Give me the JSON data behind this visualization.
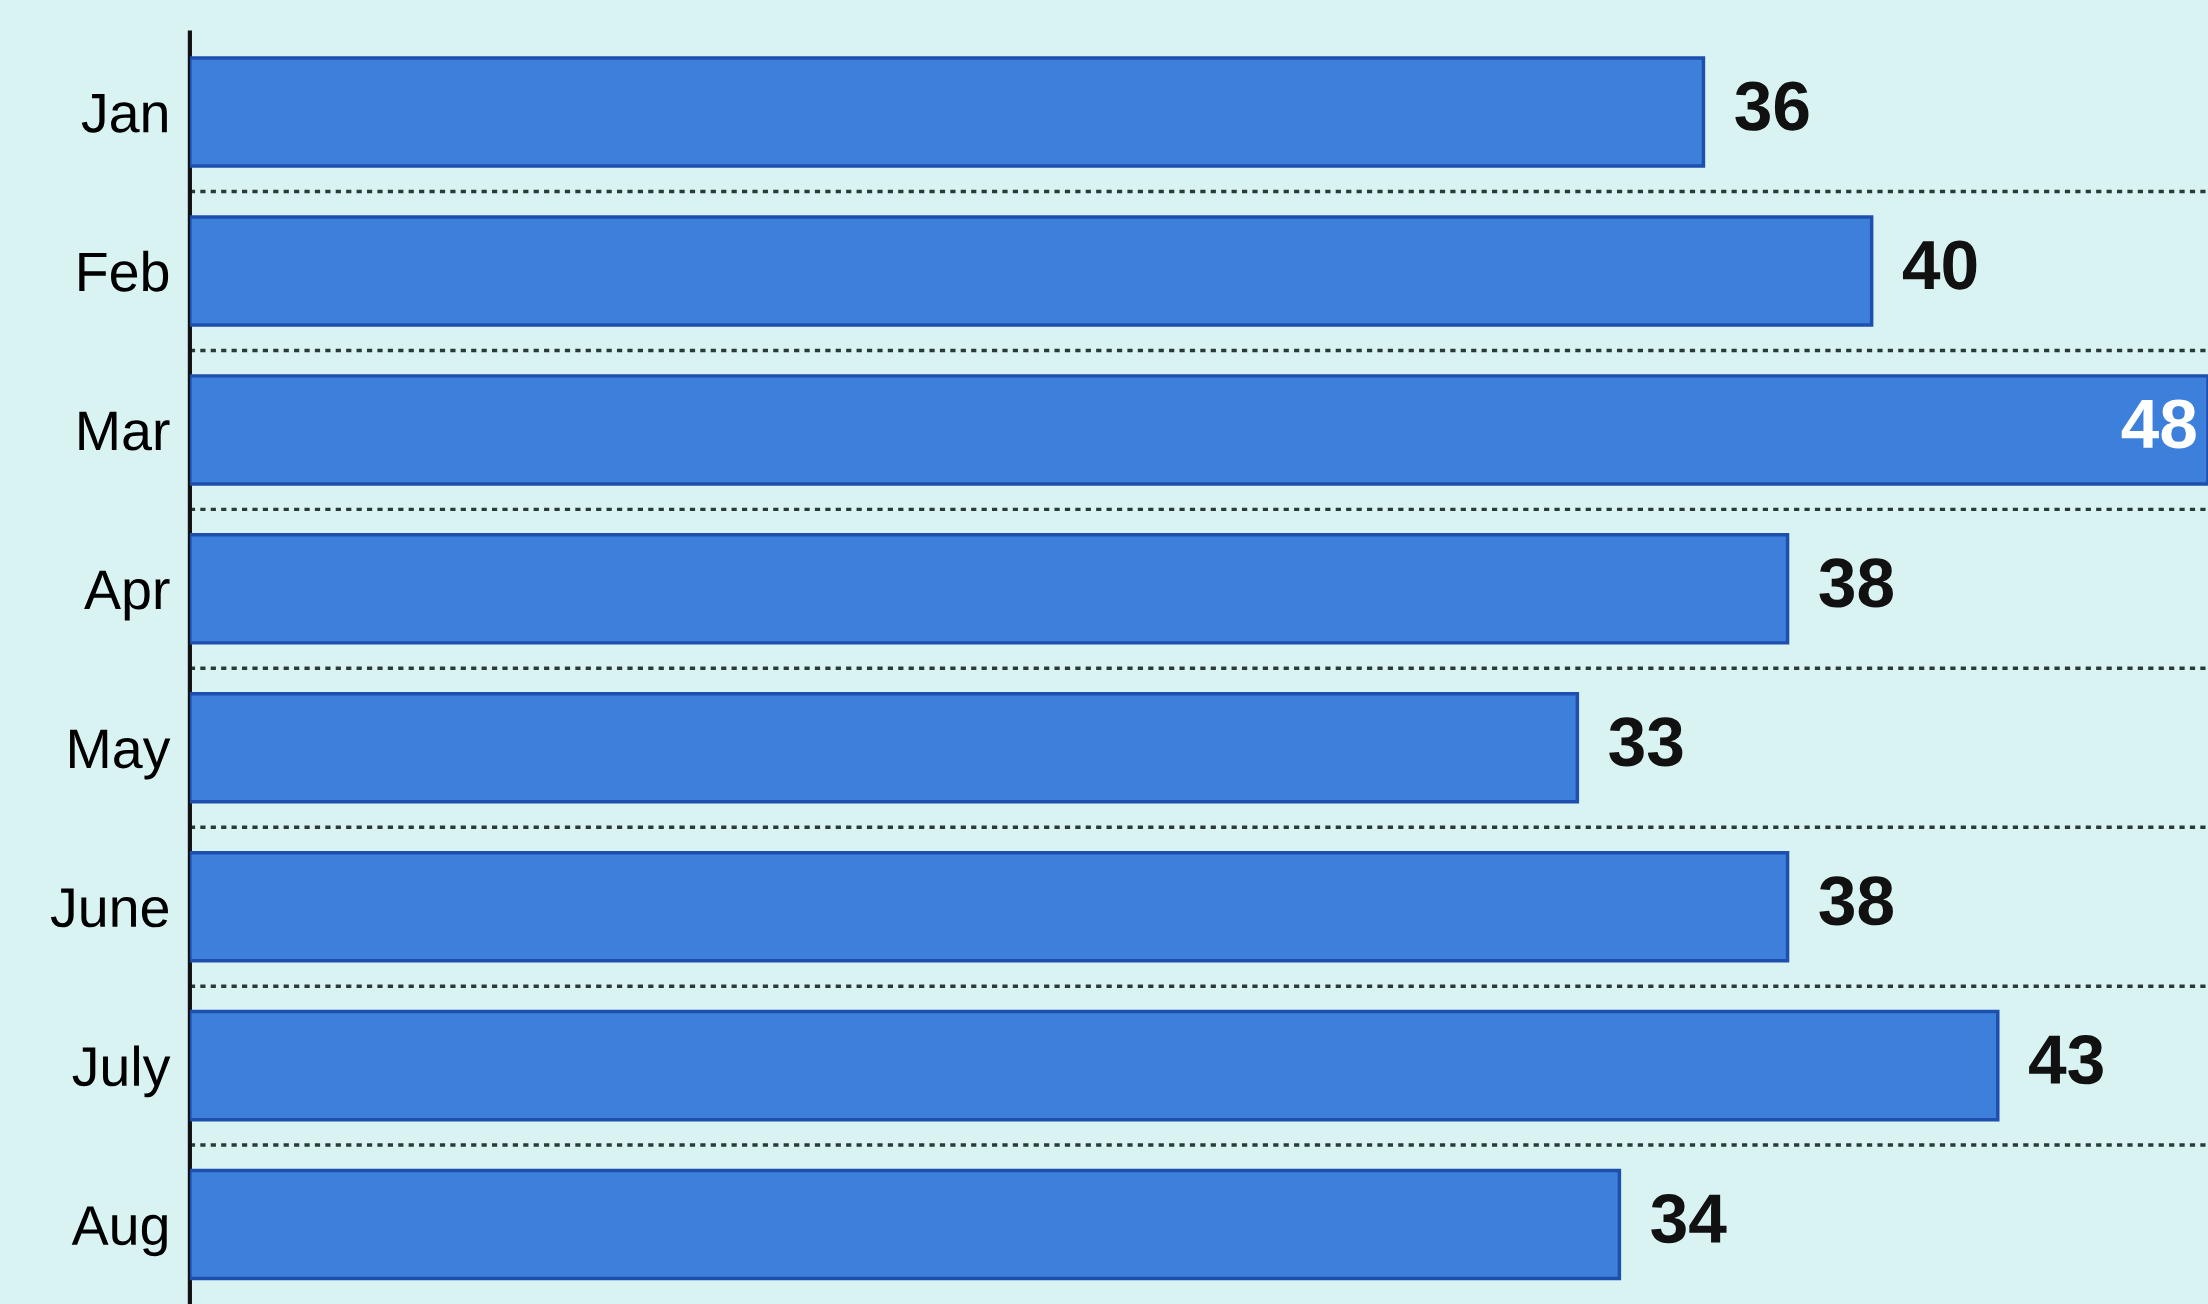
{
  "chart_data": {
    "type": "bar",
    "orientation": "horizontal",
    "categories": [
      "Jan",
      "Feb",
      "Mar",
      "Apr",
      "May",
      "June",
      "July",
      "Aug"
    ],
    "values": [
      36,
      40,
      48,
      38,
      33,
      38,
      43,
      34
    ],
    "color": "#3d80dc",
    "xlim": [
      0,
      48
    ],
    "data_labels": true,
    "grid": "y",
    "tick_labels": "y"
  }
}
